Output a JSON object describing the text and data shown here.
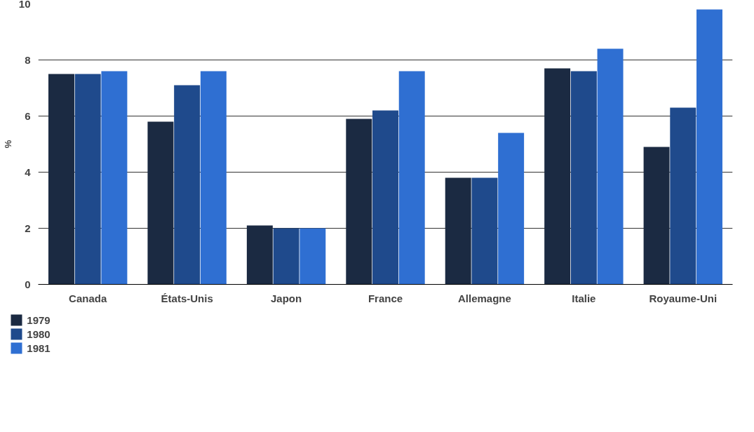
{
  "chart_data": {
    "type": "bar",
    "ylabel": "%",
    "categories": [
      "Canada",
      "États-Unis",
      "Japon",
      "France",
      "Allemagne",
      "Italie",
      "Royaume-Uni"
    ],
    "series": [
      {
        "name": "1979",
        "color": "#1b2a42",
        "values": [
          7.5,
          5.8,
          2.1,
          5.9,
          3.8,
          7.7,
          4.9
        ]
      },
      {
        "name": "1980",
        "color": "#1f4a8c",
        "values": [
          7.5,
          7.1,
          2.0,
          6.2,
          3.8,
          7.6,
          6.3
        ]
      },
      {
        "name": "1981",
        "color": "#2f6fd2",
        "values": [
          7.6,
          7.6,
          2.0,
          7.6,
          5.4,
          8.4,
          9.8
        ]
      }
    ],
    "ylim": [
      0,
      10
    ],
    "yticks": [
      0,
      2,
      4,
      6,
      8,
      10
    ],
    "grid": "y",
    "legend": "bottom left"
  }
}
